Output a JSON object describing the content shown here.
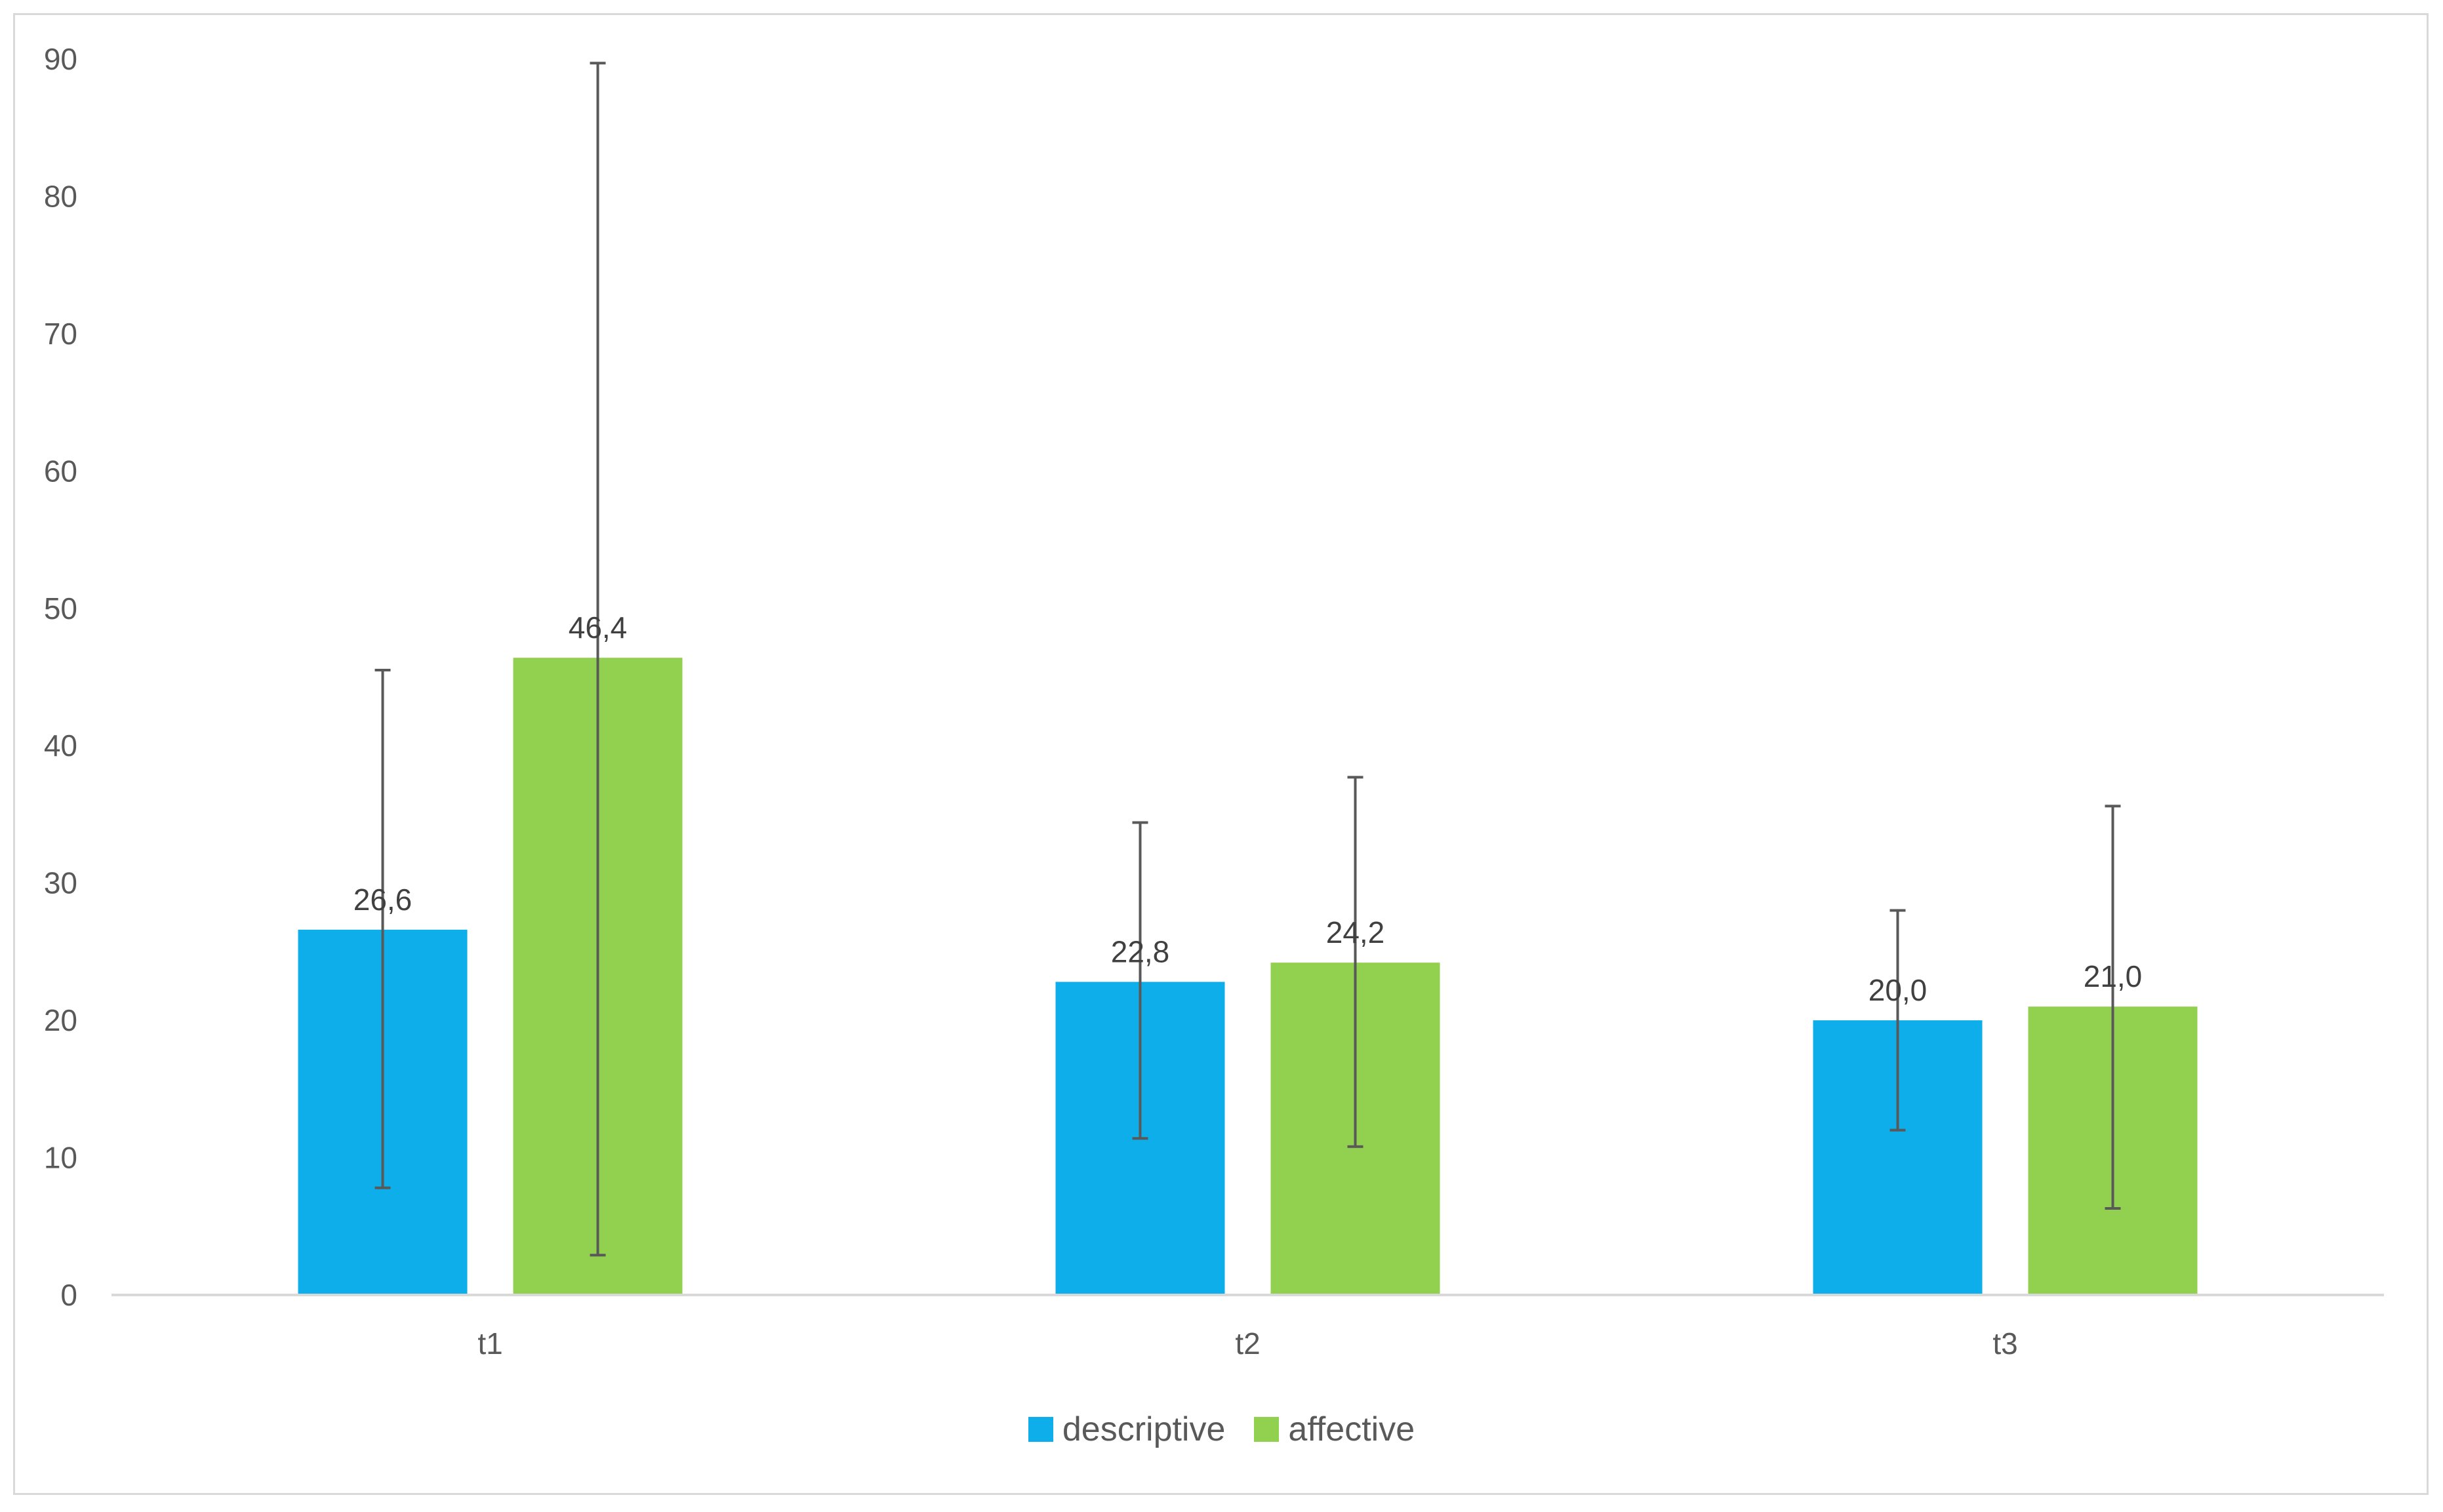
{
  "chart_data": {
    "type": "bar",
    "categories": [
      "t1",
      "t2",
      "t3"
    ],
    "series": [
      {
        "name": "descriptive",
        "color": "#0eaeeb",
        "values": [
          26.6,
          22.8,
          20.0
        ],
        "value_labels": [
          "26,6",
          "22,8",
          "20,0"
        ],
        "error_low": [
          7.8,
          11.4,
          12.0
        ],
        "error_high": [
          45.5,
          34.4,
          28.0
        ]
      },
      {
        "name": "affective",
        "color": "#92d050",
        "values": [
          46.4,
          24.2,
          21.0
        ],
        "value_labels": [
          "46,4",
          "24,2",
          "21,0"
        ],
        "error_low": [
          2.9,
          10.8,
          6.3
        ],
        "error_high": [
          89.7,
          37.7,
          35.6
        ]
      }
    ],
    "ylim": [
      0,
      90
    ],
    "yticks": [
      0,
      10,
      20,
      30,
      40,
      50,
      60,
      70,
      80,
      90
    ],
    "grid": false,
    "legend_position": "bottom",
    "title": "",
    "xlabel": "",
    "ylabel": ""
  }
}
